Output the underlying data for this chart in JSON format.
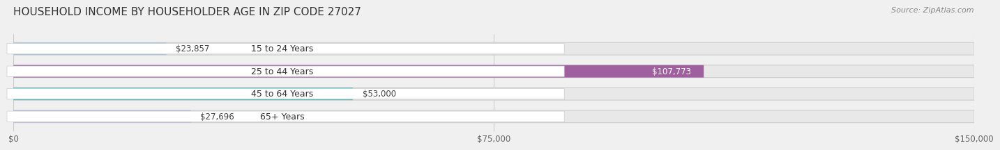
{
  "title": "HOUSEHOLD INCOME BY HOUSEHOLDER AGE IN ZIP CODE 27027",
  "source": "Source: ZipAtlas.com",
  "categories": [
    "15 to 24 Years",
    "25 to 44 Years",
    "45 to 64 Years",
    "65+ Years"
  ],
  "values": [
    23857,
    107773,
    53000,
    27696
  ],
  "bar_colors": [
    "#a8c4e0",
    "#a060a0",
    "#40b8b8",
    "#b8b8e0"
  ],
  "background_color": "#f0f0f0",
  "bar_bg_color": "#e8e8e8",
  "xlim": [
    0,
    150000
  ],
  "xticks": [
    0,
    75000,
    150000
  ],
  "xtick_labels": [
    "$0",
    "$75,000",
    "$150,000"
  ],
  "value_labels": [
    "$23,857",
    "$107,773",
    "$53,000",
    "$27,696"
  ],
  "title_fontsize": 11,
  "source_fontsize": 8
}
